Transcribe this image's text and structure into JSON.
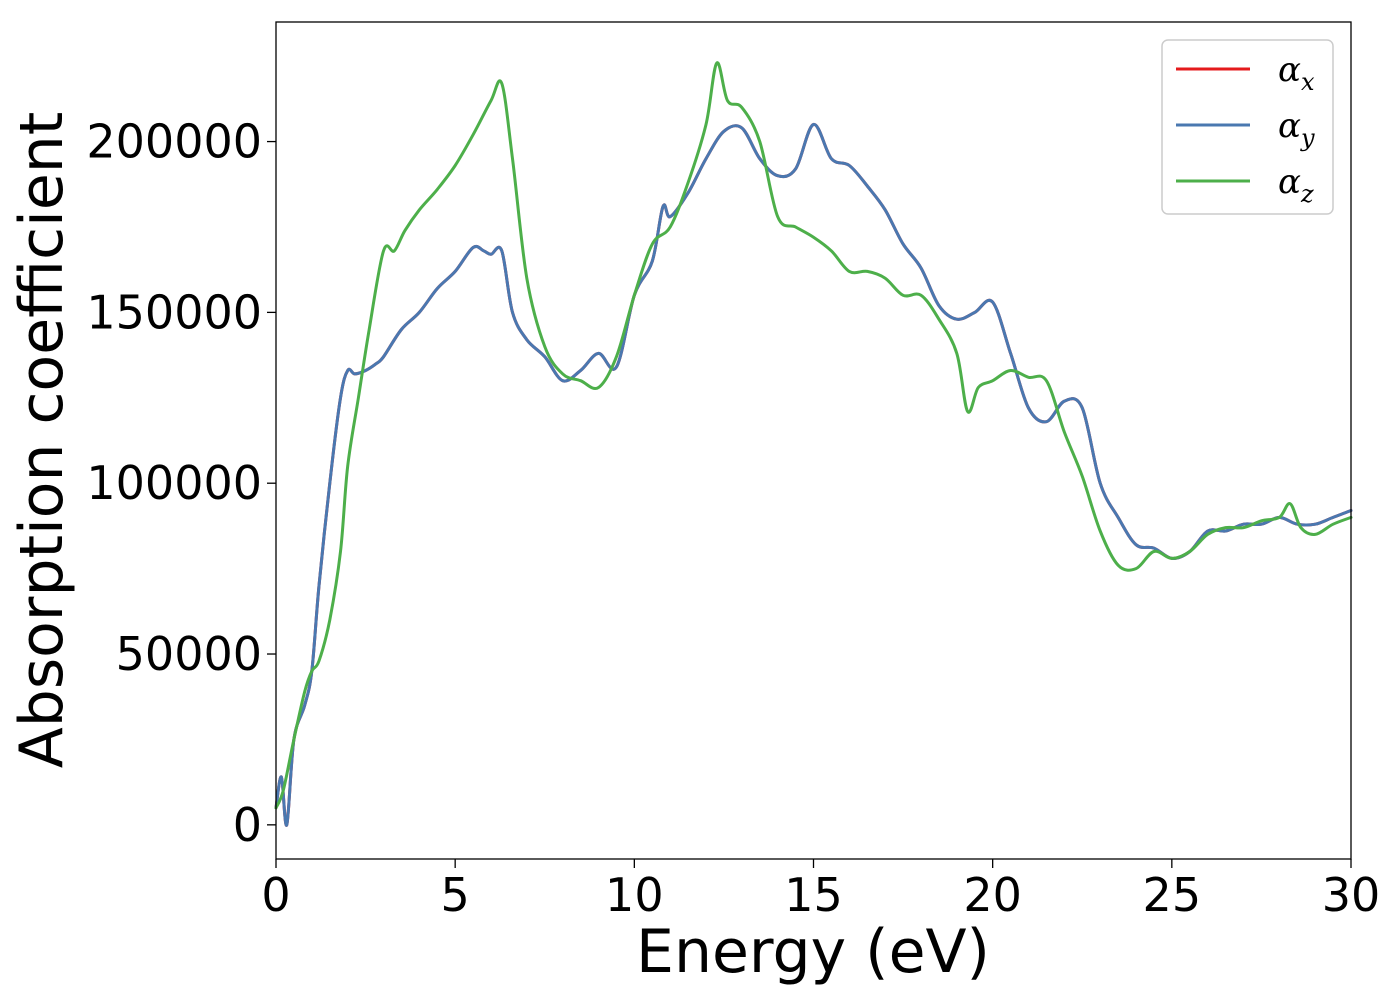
{
  "chart_data": {
    "type": "line",
    "title": "",
    "xlabel": "Energy (eV)",
    "ylabel": "Absorption coefficient",
    "xlim": [
      0,
      30
    ],
    "ylim": [
      -10000,
      235000
    ],
    "xticks": [
      0,
      5,
      10,
      15,
      20,
      25,
      30
    ],
    "xtick_labels": [
      "0",
      "5",
      "10",
      "15",
      "20",
      "25",
      "30"
    ],
    "yticks": [
      0,
      50000,
      100000,
      150000,
      200000
    ],
    "ytick_labels": [
      "0",
      "50000",
      "100000",
      "150000",
      "200000"
    ],
    "grid": false,
    "legend_position": "top-right",
    "series": [
      {
        "name": "αx",
        "symbol": "α",
        "subscript": "x",
        "color": "#e41a1c",
        "x": [
          0,
          0.15,
          0.3,
          0.5,
          0.8,
          1.0,
          1.2,
          1.5,
          1.8,
          2.0,
          2.2,
          2.5,
          2.8,
          3.0,
          3.5,
          4.0,
          4.5,
          5.0,
          5.5,
          5.8,
          6.0,
          6.3,
          6.6,
          7.0,
          7.5,
          8.0,
          8.5,
          9.0,
          9.5,
          10.0,
          10.5,
          10.8,
          11.0,
          11.5,
          12.0,
          12.5,
          13.0,
          13.5,
          14.0,
          14.5,
          15.0,
          15.5,
          16.0,
          16.5,
          17.0,
          17.5,
          18.0,
          18.5,
          19.0,
          19.5,
          20.0,
          20.5,
          21.0,
          21.5,
          22.0,
          22.5,
          23.0,
          23.5,
          24.0,
          24.5,
          25.0,
          25.5,
          26.0,
          26.5,
          27.0,
          27.5,
          28.0,
          28.5,
          29.0,
          29.5,
          30.0
        ],
        "y": [
          5000,
          14000,
          0,
          25000,
          35000,
          45000,
          70000,
          100000,
          125000,
          133000,
          132000,
          133000,
          135000,
          137000,
          145000,
          150000,
          157000,
          162000,
          169000,
          168000,
          167000,
          168000,
          150000,
          142000,
          137000,
          130000,
          133000,
          138000,
          134000,
          155000,
          165000,
          181000,
          178000,
          185000,
          195000,
          203000,
          204000,
          195000,
          190000,
          192000,
          205000,
          195000,
          193000,
          187000,
          180000,
          170000,
          163000,
          152000,
          148000,
          150000,
          153000,
          138000,
          122000,
          118000,
          124000,
          122000,
          100000,
          90000,
          82000,
          81000,
          78000,
          80000,
          86000,
          86000,
          88000,
          88000,
          90000,
          88000,
          88000,
          90000,
          92000
        ]
      },
      {
        "name": "αy",
        "symbol": "α",
        "subscript": "y",
        "color": "#4a78b0",
        "x": [
          0,
          0.15,
          0.3,
          0.5,
          0.8,
          1.0,
          1.2,
          1.5,
          1.8,
          2.0,
          2.2,
          2.5,
          2.8,
          3.0,
          3.5,
          4.0,
          4.5,
          5.0,
          5.5,
          5.8,
          6.0,
          6.3,
          6.6,
          7.0,
          7.5,
          8.0,
          8.5,
          9.0,
          9.5,
          10.0,
          10.5,
          10.8,
          11.0,
          11.5,
          12.0,
          12.5,
          13.0,
          13.5,
          14.0,
          14.5,
          15.0,
          15.5,
          16.0,
          16.5,
          17.0,
          17.5,
          18.0,
          18.5,
          19.0,
          19.5,
          20.0,
          20.5,
          21.0,
          21.5,
          22.0,
          22.5,
          23.0,
          23.5,
          24.0,
          24.5,
          25.0,
          25.5,
          26.0,
          26.5,
          27.0,
          27.5,
          28.0,
          28.5,
          29.0,
          29.5,
          30.0
        ],
        "y": [
          5000,
          14000,
          0,
          25000,
          35000,
          45000,
          70000,
          100000,
          125000,
          133000,
          132000,
          133000,
          135000,
          137000,
          145000,
          150000,
          157000,
          162000,
          169000,
          168000,
          167000,
          168000,
          150000,
          142000,
          137000,
          130000,
          133000,
          138000,
          134000,
          155000,
          165000,
          181000,
          178000,
          185000,
          195000,
          203000,
          204000,
          195000,
          190000,
          192000,
          205000,
          195000,
          193000,
          187000,
          180000,
          170000,
          163000,
          152000,
          148000,
          150000,
          153000,
          138000,
          122000,
          118000,
          124000,
          122000,
          100000,
          90000,
          82000,
          81000,
          78000,
          80000,
          86000,
          86000,
          88000,
          88000,
          90000,
          88000,
          88000,
          90000,
          92000
        ]
      },
      {
        "name": "αz",
        "symbol": "α",
        "subscript": "z",
        "color": "#4daf4a",
        "x": [
          0,
          0.2,
          0.5,
          0.8,
          1.0,
          1.2,
          1.5,
          1.8,
          2.0,
          2.3,
          2.6,
          3.0,
          3.3,
          3.6,
          4.0,
          4.5,
          5.0,
          5.5,
          6.0,
          6.3,
          6.6,
          7.0,
          7.5,
          8.0,
          8.5,
          9.0,
          9.5,
          10.0,
          10.5,
          11.0,
          11.5,
          12.0,
          12.3,
          12.6,
          13.0,
          13.5,
          14.0,
          14.5,
          15.0,
          15.5,
          16.0,
          16.5,
          17.0,
          17.5,
          18.0,
          18.5,
          19.0,
          19.3,
          19.6,
          20.0,
          20.5,
          21.0,
          21.5,
          22.0,
          22.5,
          23.0,
          23.5,
          24.0,
          24.5,
          25.0,
          25.5,
          26.0,
          26.5,
          27.0,
          27.5,
          28.0,
          28.3,
          28.6,
          29.0,
          29.5,
          30.0
        ],
        "y": [
          5000,
          10000,
          25000,
          39000,
          45000,
          48000,
          60000,
          80000,
          105000,
          125000,
          145000,
          168000,
          168000,
          174000,
          180000,
          186000,
          193000,
          202000,
          212000,
          217000,
          195000,
          160000,
          140000,
          132000,
          130000,
          128000,
          137000,
          155000,
          170000,
          175000,
          188000,
          205000,
          223000,
          212000,
          210000,
          200000,
          178000,
          175000,
          172000,
          168000,
          162000,
          162000,
          160000,
          155000,
          155000,
          148000,
          138000,
          121000,
          128000,
          130000,
          133000,
          131000,
          130000,
          115000,
          102000,
          86000,
          76000,
          75000,
          80000,
          78000,
          80000,
          85000,
          87000,
          87000,
          89000,
          90000,
          94000,
          87000,
          85000,
          88000,
          90000
        ]
      }
    ]
  }
}
